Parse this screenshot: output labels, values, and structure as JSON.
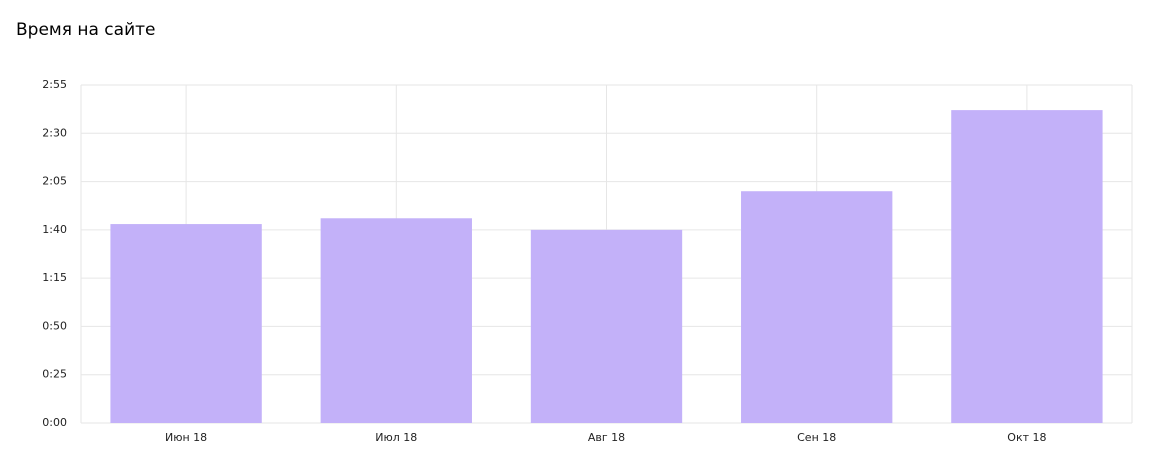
{
  "chart_data": {
    "type": "bar",
    "title": "Время на сайте",
    "categories": [
      "Июн 18",
      "Июл 18",
      "Авг 18",
      "Сен 18",
      "Окт 18"
    ],
    "values": [
      103,
      106,
      100,
      120,
      162
    ],
    "color": "#c3b1f9",
    "ylim": [
      0,
      175
    ],
    "yticks": [
      {
        "value": 0,
        "label": "0:00"
      },
      {
        "value": 25,
        "label": "0:25"
      },
      {
        "value": 50,
        "label": "0:50"
      },
      {
        "value": 75,
        "label": "1:15"
      },
      {
        "value": 100,
        "label": "1:40"
      },
      {
        "value": 125,
        "label": "2:05"
      },
      {
        "value": 150,
        "label": "2:30"
      },
      {
        "value": 175,
        "label": "2:55"
      }
    ],
    "grid": true
  }
}
